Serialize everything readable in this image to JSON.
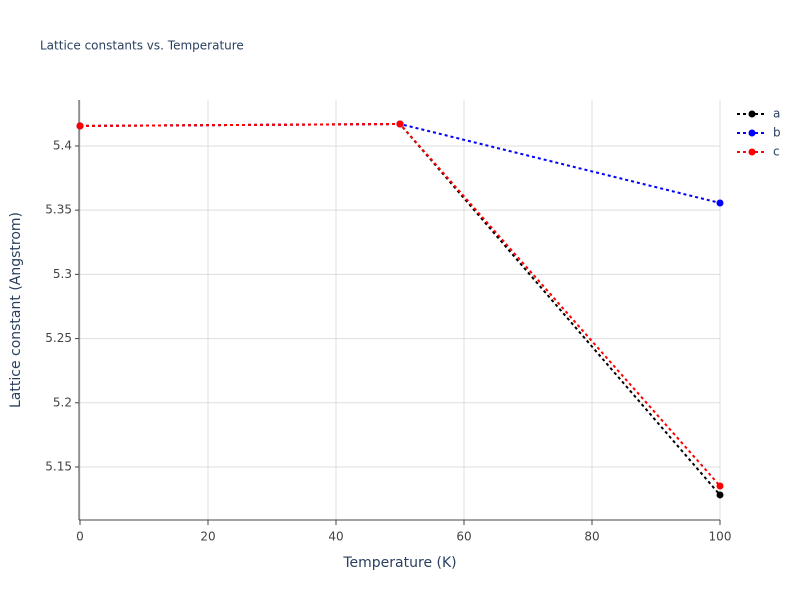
{
  "chart_data": {
    "type": "line",
    "title": "Lattice constants vs. Temperature",
    "x_label": "Temperature (K)",
    "y_label": "Lattice constant (Angstrom)",
    "x": [
      0,
      50,
      100
    ],
    "series": [
      {
        "name": "a",
        "color": "#000000",
        "values": [
          5.4156,
          5.4171,
          5.1282
        ]
      },
      {
        "name": "b",
        "color": "#0000ff",
        "values": [
          5.4156,
          5.4171,
          5.3556
        ]
      },
      {
        "name": "c",
        "color": "#ff0000",
        "values": [
          5.4156,
          5.4171,
          5.1352
        ]
      }
    ],
    "xlim": [
      0,
      100
    ],
    "xticks": [
      0,
      20,
      40,
      60,
      80,
      100
    ],
    "ylim": [
      5.1087,
      5.4358
    ],
    "yticks": [
      5.15,
      5.2,
      5.25,
      5.3,
      5.35,
      5.4
    ],
    "grid": true,
    "legend": "top-right"
  }
}
